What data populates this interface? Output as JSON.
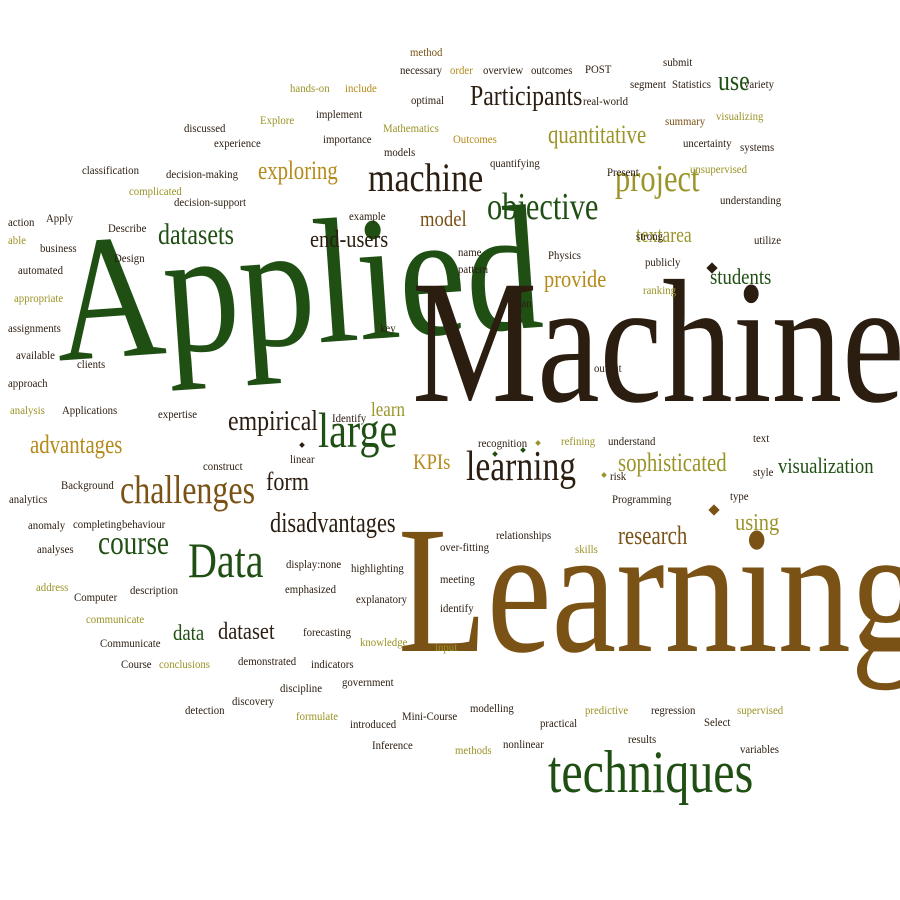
{
  "cloud": {
    "palette": {
      "dark": "#2b1d10",
      "brown": "#7a5215",
      "green": "#1f4f13",
      "olive": "#9b9428",
      "gold": "#b58a1a",
      "tan": "#c9a64b"
    },
    "words": [
      {
        "text": "Applied",
        "c": "green",
        "r": true
      },
      {
        "text": "Machine",
        "c": "dark"
      },
      {
        "text": "Learning",
        "c": "brown"
      },
      {
        "text": "techniques",
        "c": "green"
      },
      {
        "text": "machine",
        "c": "dark"
      },
      {
        "text": "objective",
        "c": "green"
      },
      {
        "text": "project",
        "c": "olive"
      },
      {
        "text": "Participants",
        "c": "dark"
      },
      {
        "text": "quantitative",
        "c": "olive"
      },
      {
        "text": "exploring",
        "c": "gold"
      },
      {
        "text": "datasets",
        "c": "green"
      },
      {
        "text": "end-users",
        "c": "dark"
      },
      {
        "text": "model",
        "c": "brown"
      },
      {
        "text": "textarea",
        "c": "olive"
      },
      {
        "text": "provide",
        "c": "gold"
      },
      {
        "text": "students",
        "c": "green"
      },
      {
        "text": "large",
        "c": "green"
      },
      {
        "text": "learning",
        "c": "dark"
      },
      {
        "text": "KPIs",
        "c": "gold"
      },
      {
        "text": "sophisticated",
        "c": "olive"
      },
      {
        "text": "visualization",
        "c": "green"
      },
      {
        "text": "challenges",
        "c": "brown"
      },
      {
        "text": "empirical",
        "c": "dark"
      },
      {
        "text": "advantages",
        "c": "gold"
      },
      {
        "text": "course",
        "c": "green"
      },
      {
        "text": "Data",
        "c": "green"
      },
      {
        "text": "disadvantages",
        "c": "dark"
      },
      {
        "text": "research",
        "c": "brown"
      },
      {
        "text": "using",
        "c": "olive"
      },
      {
        "text": "form",
        "c": "dark"
      },
      {
        "text": "data",
        "c": "green"
      },
      {
        "text": "dataset",
        "c": "dark"
      },
      {
        "text": "learn",
        "c": "olive"
      },
      {
        "text": "use",
        "c": "green"
      },
      {
        "text": "method",
        "c": "brown"
      },
      {
        "text": "necessary",
        "c": "dark"
      },
      {
        "text": "order",
        "c": "gold"
      },
      {
        "text": "overview",
        "c": "dark"
      },
      {
        "text": "outcomes",
        "c": "dark"
      },
      {
        "text": "POST",
        "c": "dark"
      },
      {
        "text": "submit",
        "c": "dark"
      },
      {
        "text": "segment",
        "c": "dark"
      },
      {
        "text": "Statistics",
        "c": "dark"
      },
      {
        "text": "variety",
        "c": "dark"
      },
      {
        "text": "hands-on",
        "c": "olive"
      },
      {
        "text": "include",
        "c": "gold"
      },
      {
        "text": "optimal",
        "c": "dark"
      },
      {
        "text": "real-world",
        "c": "dark"
      },
      {
        "text": "visualizing",
        "c": "olive"
      },
      {
        "text": "summary",
        "c": "brown"
      },
      {
        "text": "implement",
        "c": "dark"
      },
      {
        "text": "Explore",
        "c": "olive"
      },
      {
        "text": "discussed",
        "c": "dark"
      },
      {
        "text": "experience",
        "c": "dark"
      },
      {
        "text": "importance",
        "c": "dark"
      },
      {
        "text": "Mathematics",
        "c": "olive"
      },
      {
        "text": "Outcomes",
        "c": "gold"
      },
      {
        "text": "uncertainty",
        "c": "dark"
      },
      {
        "text": "systems",
        "c": "dark"
      },
      {
        "text": "models",
        "c": "dark"
      },
      {
        "text": "quantifying",
        "c": "dark"
      },
      {
        "text": "Present",
        "c": "dark"
      },
      {
        "text": "unsupervised",
        "c": "olive"
      },
      {
        "text": "classification",
        "c": "dark"
      },
      {
        "text": "decision-making",
        "c": "dark"
      },
      {
        "text": "complicated",
        "c": "olive"
      },
      {
        "text": "decision-support",
        "c": "dark"
      },
      {
        "text": "understanding",
        "c": "dark"
      },
      {
        "text": "example",
        "c": "dark"
      },
      {
        "text": "action",
        "c": "dark"
      },
      {
        "text": "Apply",
        "c": "dark"
      },
      {
        "text": "able",
        "c": "olive"
      },
      {
        "text": "business",
        "c": "dark"
      },
      {
        "text": "Describe",
        "c": "dark"
      },
      {
        "text": "Design",
        "c": "dark"
      },
      {
        "text": "automated",
        "c": "dark"
      },
      {
        "text": "appropriate",
        "c": "olive"
      },
      {
        "text": "name",
        "c": "dark"
      },
      {
        "text": "pattern",
        "c": "dark"
      },
      {
        "text": "Physics",
        "c": "dark"
      },
      {
        "text": "strong",
        "c": "dark"
      },
      {
        "text": "utilize",
        "c": "dark"
      },
      {
        "text": "publicly",
        "c": "dark"
      },
      {
        "text": "ranking",
        "c": "olive"
      },
      {
        "text": "plan",
        "c": "dark"
      },
      {
        "text": "assignments",
        "c": "dark"
      },
      {
        "text": "available",
        "c": "dark"
      },
      {
        "text": "clients",
        "c": "dark"
      },
      {
        "text": "key",
        "c": "dark"
      },
      {
        "text": "approach",
        "c": "dark"
      },
      {
        "text": "output",
        "c": "dark"
      },
      {
        "text": "analysis",
        "c": "olive"
      },
      {
        "text": "Applications",
        "c": "dark"
      },
      {
        "text": "expertise",
        "c": "dark"
      },
      {
        "text": "Identify",
        "c": "dark"
      },
      {
        "text": "recognition",
        "c": "dark"
      },
      {
        "text": "refining",
        "c": "olive"
      },
      {
        "text": "understand",
        "c": "dark"
      },
      {
        "text": "text",
        "c": "dark"
      },
      {
        "text": "linear",
        "c": "dark"
      },
      {
        "text": "construct",
        "c": "dark"
      },
      {
        "text": "risk",
        "c": "dark"
      },
      {
        "text": "style",
        "c": "dark"
      },
      {
        "text": "Background",
        "c": "dark"
      },
      {
        "text": "analytics",
        "c": "dark"
      },
      {
        "text": "Programming",
        "c": "dark"
      },
      {
        "text": "type",
        "c": "dark"
      },
      {
        "text": "anomaly",
        "c": "dark"
      },
      {
        "text": "completing",
        "c": "dark"
      },
      {
        "text": "behaviour",
        "c": "dark"
      },
      {
        "text": "relationships",
        "c": "dark"
      },
      {
        "text": "analyses",
        "c": "dark"
      },
      {
        "text": "display:none",
        "c": "dark"
      },
      {
        "text": "highlighting",
        "c": "dark"
      },
      {
        "text": "over-fitting",
        "c": "dark"
      },
      {
        "text": "skills",
        "c": "olive"
      },
      {
        "text": "address",
        "c": "olive"
      },
      {
        "text": "Computer",
        "c": "dark"
      },
      {
        "text": "description",
        "c": "dark"
      },
      {
        "text": "emphasized",
        "c": "dark"
      },
      {
        "text": "explanatory",
        "c": "dark"
      },
      {
        "text": "meeting",
        "c": "dark"
      },
      {
        "text": "communicate",
        "c": "olive"
      },
      {
        "text": "identify",
        "c": "dark"
      },
      {
        "text": "Communicate",
        "c": "dark"
      },
      {
        "text": "forecasting",
        "c": "dark"
      },
      {
        "text": "knowledge",
        "c": "olive"
      },
      {
        "text": "input",
        "c": "olive"
      },
      {
        "text": "Course",
        "c": "dark"
      },
      {
        "text": "conclusions",
        "c": "olive"
      },
      {
        "text": "demonstrated",
        "c": "dark"
      },
      {
        "text": "indicators",
        "c": "dark"
      },
      {
        "text": "discipline",
        "c": "dark"
      },
      {
        "text": "government",
        "c": "dark"
      },
      {
        "text": "detection",
        "c": "dark"
      },
      {
        "text": "discovery",
        "c": "dark"
      },
      {
        "text": "formulate",
        "c": "olive"
      },
      {
        "text": "introduced",
        "c": "dark"
      },
      {
        "text": "Mini-Course",
        "c": "dark"
      },
      {
        "text": "modelling",
        "c": "dark"
      },
      {
        "text": "predictive",
        "c": "olive"
      },
      {
        "text": "regression",
        "c": "dark"
      },
      {
        "text": "supervised",
        "c": "olive"
      },
      {
        "text": "practical",
        "c": "dark"
      },
      {
        "text": "Select",
        "c": "dark"
      },
      {
        "text": "results",
        "c": "dark"
      },
      {
        "text": "Inference",
        "c": "dark"
      },
      {
        "text": "methods",
        "c": "olive"
      },
      {
        "text": "nonlinear",
        "c": "dark"
      },
      {
        "text": "variables",
        "c": "dark"
      }
    ]
  }
}
